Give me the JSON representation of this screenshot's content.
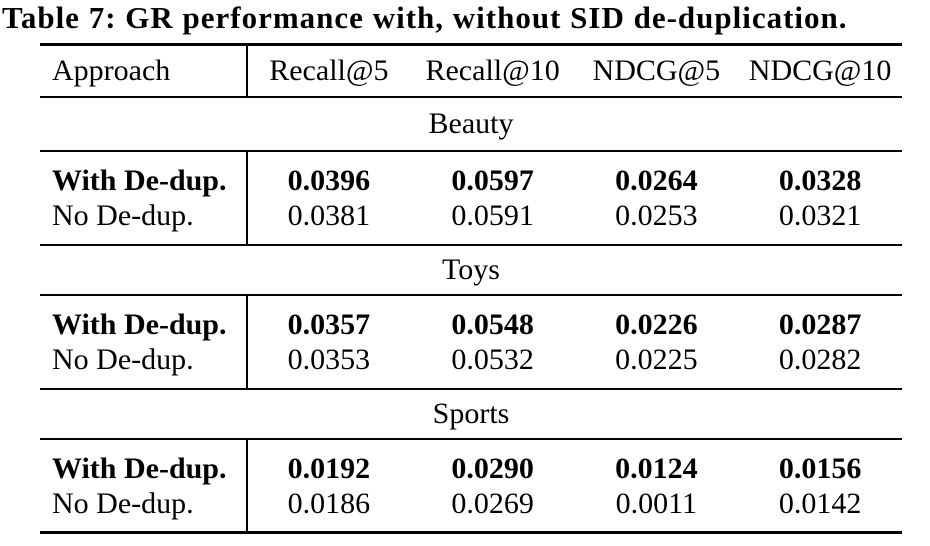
{
  "title": "Table 7: GR performance with, without SID de-duplication.",
  "style": {
    "ink": "#000000",
    "paper": "#ffffff"
  },
  "chart_data": {
    "type": "table",
    "title": "Table 7: GR performance with, without SID de-duplication.",
    "columns": [
      "Approach",
      "Recall@5",
      "Recall@10",
      "NDCG@5",
      "NDCG@10"
    ],
    "sections": [
      {
        "group": "Beauty",
        "rows": [
          {
            "approach": "With De-dup.",
            "emphasis": "bold",
            "values": [
              "0.0396",
              "0.0597",
              "0.0264",
              "0.0328"
            ]
          },
          {
            "approach": "No De-dup.",
            "emphasis": "none",
            "values": [
              "0.0381",
              "0.0591",
              "0.0253",
              "0.0321"
            ]
          }
        ]
      },
      {
        "group": "Toys",
        "rows": [
          {
            "approach": "With De-dup.",
            "emphasis": "bold",
            "values": [
              "0.0357",
              "0.0548",
              "0.0226",
              "0.0287"
            ]
          },
          {
            "approach": "No De-dup.",
            "emphasis": "none",
            "values": [
              "0.0353",
              "0.0532",
              "0.0225",
              "0.0282"
            ]
          }
        ]
      },
      {
        "group": "Sports",
        "rows": [
          {
            "approach": "With De-dup.",
            "emphasis": "bold",
            "values": [
              "0.0192",
              "0.0290",
              "0.0124",
              "0.0156"
            ]
          },
          {
            "approach": "No De-dup.",
            "emphasis": "none",
            "values": [
              "0.0186",
              "0.0269",
              "0.0011",
              "0.0142"
            ]
          }
        ]
      }
    ]
  }
}
